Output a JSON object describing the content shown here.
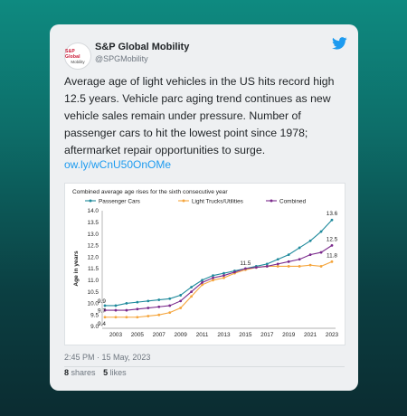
{
  "tweet": {
    "author_name": "S&P Global Mobility",
    "author_handle": "@SPGMobility",
    "avatar_text_line1": "S&P Global",
    "avatar_text_line2": "Mobility",
    "body": "Average age of light vehicles in the US hits record high 12.5 years. Vehicle parc aging trend continues as new vehicle sales remain under pressure. Number of passenger cars to hit the lowest point since 1978; aftermarket repair opportunities to surge.",
    "link": "ow.ly/wCnU50OnOMe",
    "timestamp": "2:45 PM · 15 May, 2023",
    "shares_count": "8",
    "shares_label": "shares",
    "likes_count": "5",
    "likes_label": "likes"
  },
  "colors": {
    "card_bg": "#eef0f2",
    "link": "#1d9bf0",
    "passenger": "#1f8a9c",
    "trucks": "#f5a53c",
    "combined": "#7a2a8c"
  },
  "icons": {
    "brand": "twitter-bird-icon"
  },
  "chart_data": {
    "type": "line",
    "title": "Combined average age rises for the sixth consecutive year",
    "ylabel": "Age in years",
    "xlabel": "",
    "x": [
      2002,
      2003,
      2004,
      2005,
      2006,
      2007,
      2008,
      2009,
      2010,
      2011,
      2012,
      2013,
      2014,
      2015,
      2016,
      2017,
      2018,
      2019,
      2020,
      2021,
      2022,
      2023
    ],
    "xticks": [
      2003,
      2005,
      2007,
      2009,
      2011,
      2013,
      2015,
      2017,
      2019,
      2021,
      2023
    ],
    "ylim": [
      9.0,
      14.0
    ],
    "yticks": [
      9.0,
      9.5,
      10.0,
      10.5,
      11.0,
      11.5,
      12.0,
      12.5,
      13.0,
      13.5,
      14.0
    ],
    "ytick_labels": [
      "9.0",
      "9.5",
      "10.0",
      "10.5",
      "11.0",
      "11.5",
      "12.0",
      "12.5",
      "13.0",
      "13.5",
      "14.0"
    ],
    "legend_position": "top",
    "grid": false,
    "series": [
      {
        "name": "Passenger Cars",
        "values": [
          9.9,
          9.9,
          10.0,
          10.05,
          10.1,
          10.15,
          10.2,
          10.35,
          10.7,
          11.0,
          11.2,
          11.3,
          11.4,
          11.5,
          11.6,
          11.7,
          11.9,
          12.1,
          12.4,
          12.7,
          13.1,
          13.6
        ]
      },
      {
        "name": "Light Trucks/Utilities",
        "values": [
          9.4,
          9.4,
          9.4,
          9.4,
          9.45,
          9.5,
          9.6,
          9.8,
          10.3,
          10.8,
          11.0,
          11.1,
          11.3,
          11.45,
          11.55,
          11.6,
          11.6,
          11.6,
          11.6,
          11.65,
          11.6,
          11.8
        ]
      },
      {
        "name": "Combined",
        "values": [
          9.7,
          9.7,
          9.7,
          9.75,
          9.8,
          9.85,
          9.9,
          10.1,
          10.5,
          10.9,
          11.1,
          11.2,
          11.35,
          11.5,
          11.55,
          11.6,
          11.7,
          11.8,
          11.9,
          12.1,
          12.2,
          12.5
        ]
      }
    ],
    "annotations": [
      {
        "text": "9.9",
        "x": 2002,
        "y": 9.9,
        "series": "Passenger Cars"
      },
      {
        "text": "9.7",
        "x": 2002,
        "y": 9.7,
        "series": "Combined"
      },
      {
        "text": "9.4",
        "x": 2002,
        "y": 9.4,
        "series": "Light Trucks/Utilities"
      },
      {
        "text": "11.5",
        "x": 2015,
        "y": 11.5,
        "series": "Combined"
      },
      {
        "text": "13.6",
        "x": 2023,
        "y": 13.6,
        "series": "Passenger Cars"
      },
      {
        "text": "12.5",
        "x": 2023,
        "y": 12.5,
        "series": "Combined"
      },
      {
        "text": "11.8",
        "x": 2023,
        "y": 11.8,
        "series": "Light Trucks/Utilities"
      }
    ]
  }
}
